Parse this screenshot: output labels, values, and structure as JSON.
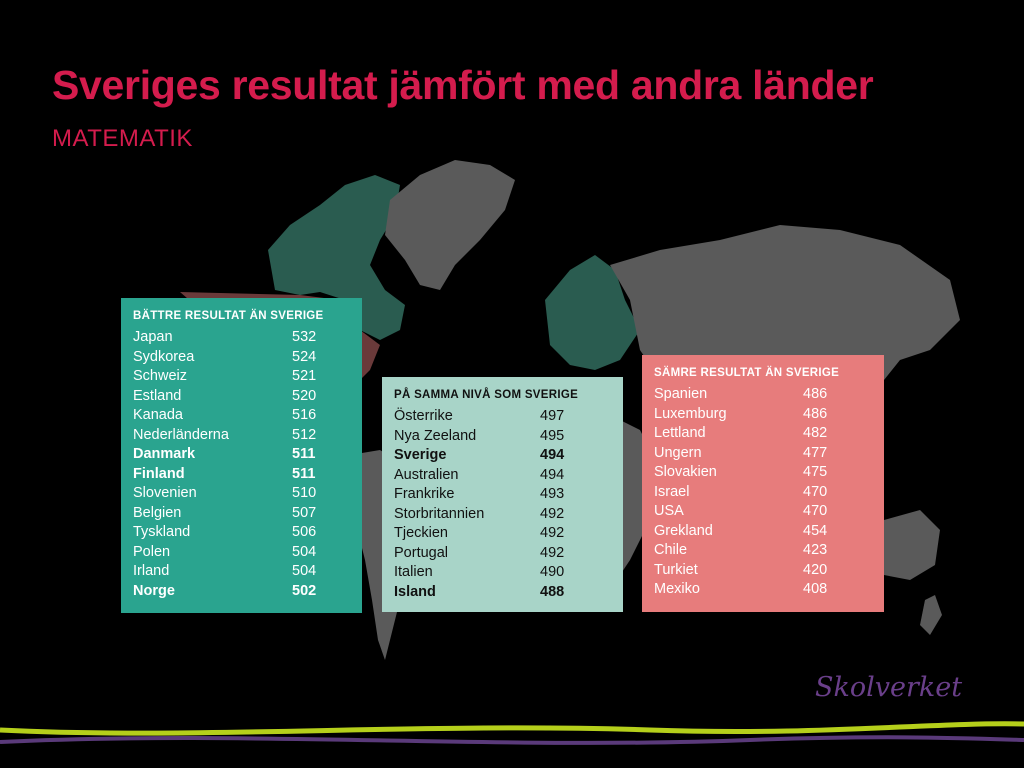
{
  "title": "Sveriges resultat jämfört med andra länder",
  "subtitle": "MATEMATIK",
  "colors": {
    "title": "#d41c4d",
    "better": "#2aa48f",
    "same": "#a8d4c8",
    "worse": "#e77c7c",
    "map_land": "#5a5a5a",
    "map_better": "#2a5c50",
    "map_worse": "#6a3a3a",
    "logo": "#6a3f8a",
    "wave_green": "#b5cf1b",
    "wave_purple": "#5a3a7a"
  },
  "better": {
    "heading": "BÄTTRE RESULTAT ÄN SVERIGE",
    "rows": [
      {
        "country": "Japan",
        "score": "532",
        "bold": false
      },
      {
        "country": "Sydkorea",
        "score": "524",
        "bold": false
      },
      {
        "country": "Schweiz",
        "score": "521",
        "bold": false
      },
      {
        "country": "Estland",
        "score": "520",
        "bold": false
      },
      {
        "country": "Kanada",
        "score": "516",
        "bold": false
      },
      {
        "country": "Nederländerna",
        "score": "512",
        "bold": false
      },
      {
        "country": "Danmark",
        "score": "511",
        "bold": true
      },
      {
        "country": "Finland",
        "score": "511",
        "bold": true
      },
      {
        "country": "Slovenien",
        "score": "510",
        "bold": false
      },
      {
        "country": "Belgien",
        "score": "507",
        "bold": false
      },
      {
        "country": "Tyskland",
        "score": "506",
        "bold": false
      },
      {
        "country": "Polen",
        "score": "504",
        "bold": false
      },
      {
        "country": "Irland",
        "score": "504",
        "bold": false
      },
      {
        "country": "Norge",
        "score": "502",
        "bold": true
      }
    ]
  },
  "same": {
    "heading": "PÅ SAMMA NIVÅ SOM SVERIGE",
    "rows": [
      {
        "country": "Österrike",
        "score": "497",
        "bold": false
      },
      {
        "country": "Nya Zeeland",
        "score": "495",
        "bold": false
      },
      {
        "country": "Sverige",
        "score": "494",
        "bold": true
      },
      {
        "country": "Australien",
        "score": "494",
        "bold": false
      },
      {
        "country": "Frankrike",
        "score": "493",
        "bold": false
      },
      {
        "country": "Storbritannien",
        "score": "492",
        "bold": false
      },
      {
        "country": "Tjeckien",
        "score": "492",
        "bold": false
      },
      {
        "country": "Portugal",
        "score": "492",
        "bold": false
      },
      {
        "country": "Italien",
        "score": "490",
        "bold": false
      },
      {
        "country": "Island",
        "score": "488",
        "bold": true
      }
    ]
  },
  "worse": {
    "heading": "SÄMRE RESULTAT ÄN SVERIGE",
    "rows": [
      {
        "country": "Spanien",
        "score": "486",
        "bold": false
      },
      {
        "country": "Luxemburg",
        "score": "486",
        "bold": false
      },
      {
        "country": "Lettland",
        "score": "482",
        "bold": false
      },
      {
        "country": "Ungern",
        "score": "477",
        "bold": false
      },
      {
        "country": "Slovakien",
        "score": "475",
        "bold": false
      },
      {
        "country": "Israel",
        "score": "470",
        "bold": false
      },
      {
        "country": "USA",
        "score": "470",
        "bold": false
      },
      {
        "country": "Grekland",
        "score": "454",
        "bold": false
      },
      {
        "country": "Chile",
        "score": "423",
        "bold": false
      },
      {
        "country": "Turkiet",
        "score": "420",
        "bold": false
      },
      {
        "country": "Mexiko",
        "score": "408",
        "bold": false
      }
    ]
  },
  "logo": "Skolverket"
}
